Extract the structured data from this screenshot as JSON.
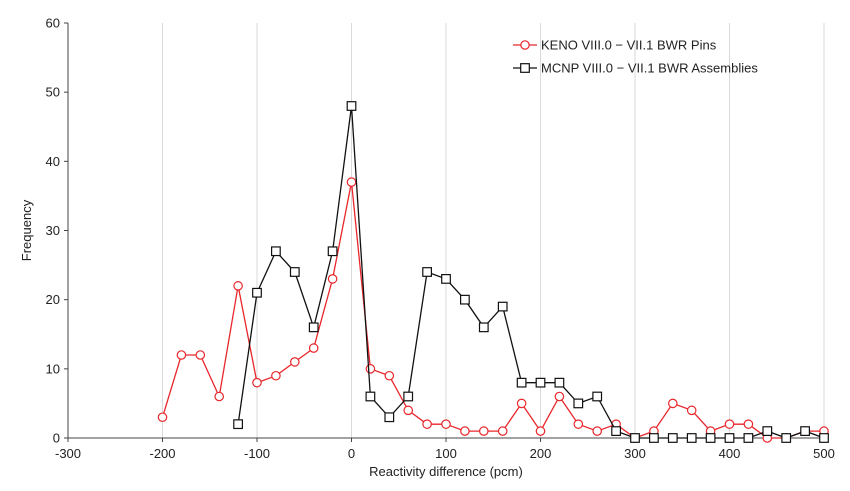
{
  "chart_data": {
    "type": "line",
    "title": "",
    "xlabel": "Reactivity difference (pcm)",
    "ylabel": "Frequency",
    "xlim": [
      -300,
      500
    ],
    "ylim": [
      0,
      60
    ],
    "xticks": [
      -300,
      -200,
      -100,
      0,
      100,
      200,
      300,
      400,
      500
    ],
    "yticks": [
      0,
      10,
      20,
      30,
      40,
      50,
      60
    ],
    "grid": "vertical",
    "legend": "top-right",
    "series": [
      {
        "name": "KENO VIII.0 − VII.1 BWR Pins",
        "color": "#e8262b",
        "marker": "circle",
        "x": [
          -200,
          -180,
          -160,
          -140,
          -120,
          -100,
          -80,
          -60,
          -40,
          -20,
          0,
          20,
          40,
          60,
          80,
          100,
          120,
          140,
          160,
          180,
          200,
          220,
          240,
          260,
          280,
          300,
          320,
          340,
          360,
          380,
          400,
          420,
          440,
          460,
          480,
          500
        ],
        "y": [
          3,
          12,
          12,
          6,
          22,
          8,
          9,
          11,
          13,
          23,
          37,
          10,
          9,
          4,
          2,
          2,
          1,
          1,
          1,
          5,
          1,
          6,
          2,
          1,
          2,
          0,
          1,
          5,
          4,
          1,
          2,
          2,
          0,
          0,
          1,
          1
        ]
      },
      {
        "name": "MCNP VIII.0 − VII.1 BWR Assemblies",
        "color": "#111111",
        "marker": "square",
        "x": [
          -120,
          -100,
          -80,
          -60,
          -40,
          -20,
          0,
          20,
          40,
          60,
          80,
          100,
          120,
          140,
          160,
          180,
          200,
          220,
          240,
          260,
          280,
          300,
          320,
          340,
          360,
          380,
          400,
          420,
          440,
          460,
          480,
          500
        ],
        "y": [
          2,
          21,
          27,
          24,
          16,
          27,
          48,
          6,
          3,
          6,
          24,
          23,
          20,
          16,
          19,
          8,
          8,
          8,
          5,
          6,
          1,
          0,
          0,
          0,
          0,
          0,
          0,
          0,
          1,
          0,
          1,
          0
        ]
      }
    ]
  }
}
